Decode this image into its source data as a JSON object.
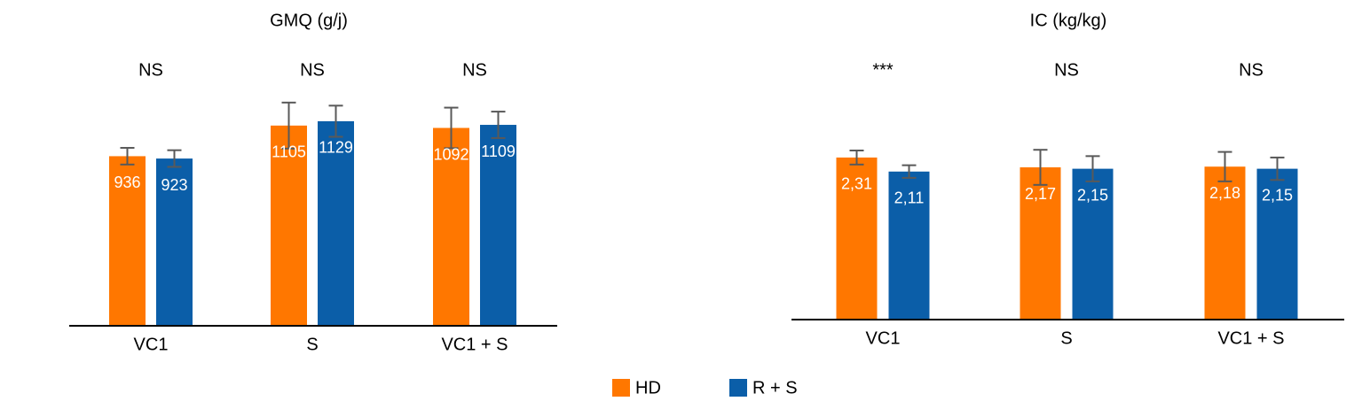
{
  "chart_data": [
    {
      "type": "bar",
      "title": "GMQ (g/j)",
      "categories": [
        "VC1",
        "S",
        "VC1 + S"
      ],
      "annotations": [
        "NS",
        "NS",
        "NS"
      ],
      "series": [
        {
          "color": "#ff7700",
          "values": [
            936,
            1105,
            1092
          ],
          "errors": [
            46,
            127,
            112
          ]
        },
        {
          "color": "#0b5ea8",
          "values": [
            923,
            1129,
            1109
          ],
          "errors": [
            46,
            86,
            73
          ]
        }
      ],
      "ylim": [
        0,
        1500
      ]
    },
    {
      "type": "bar",
      "title": "IC (kg/kg)",
      "categories": [
        "VC1",
        "S",
        "VC1 + S"
      ],
      "annotations": [
        "***",
        "NS",
        "NS"
      ],
      "series": [
        {
          "color": "#ff7700",
          "values": [
            2.31,
            2.17,
            2.18
          ],
          "value_labels": [
            "2,31",
            "2,17",
            "2,18"
          ],
          "errors": [
            0.1,
            0.25,
            0.21
          ]
        },
        {
          "color": "#0b5ea8",
          "values": [
            2.11,
            2.15,
            2.15
          ],
          "value_labels": [
            "2,11",
            "2,15",
            "2,15"
          ],
          "errors": [
            0.09,
            0.18,
            0.16
          ]
        }
      ],
      "ylim": [
        0,
        4
      ]
    }
  ],
  "legend": [
    {
      "name": "HD",
      "color": "#ff7700"
    },
    {
      "name": "R + S",
      "color": "#0b5ea8"
    }
  ]
}
